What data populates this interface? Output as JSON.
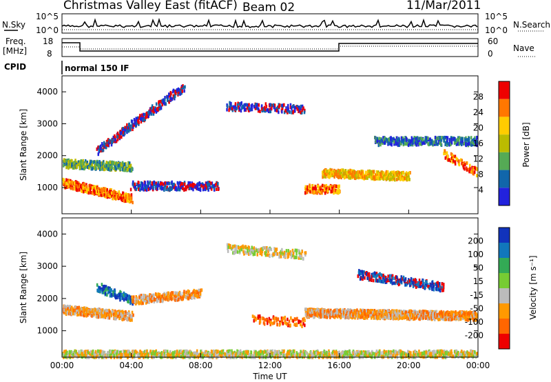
{
  "header": {
    "title": "Christmas Valley East (fitACF)",
    "beam": "Beam 02",
    "date": "11/Mar/2011"
  },
  "status_panels": {
    "nsky_label": "N.Sky",
    "nsearch_label": "N.Search",
    "nsky_ticks": [
      "10^5",
      "10^0"
    ],
    "nsearch_ticks": [
      "10^5",
      "10^0"
    ],
    "freq_label_1": "Freq.",
    "freq_label_2": "[MHz]",
    "freq_ticks": [
      "18",
      "8"
    ],
    "nave_label": "Nave",
    "nave_ticks": [
      "60",
      "0"
    ],
    "cpid_label": "CPID",
    "cpid_value": "normal 150 IF"
  },
  "chart_data": [
    {
      "type": "heatmap",
      "name": "power-panel",
      "ylabel": "Slant Range [km]",
      "xlabel": "",
      "ylim": [
        180,
        4500
      ],
      "yticks": [
        1000,
        2000,
        3000,
        4000
      ],
      "xlim": [
        0,
        24
      ],
      "colorbar": {
        "label": "Power [dB]",
        "ticks": [
          "28",
          "24",
          "20",
          "16",
          "12",
          "8",
          "4"
        ],
        "colors": [
          "#ee0000",
          "#ff7700",
          "#ffcc00",
          "#bbbb00",
          "#55aa55",
          "#1166aa",
          "#2222dd"
        ]
      }
    },
    {
      "type": "heatmap",
      "name": "velocity-panel",
      "ylabel": "Slant Range [km]",
      "xlabel": "Time UT",
      "ylim": [
        180,
        4500
      ],
      "yticks": [
        1000,
        2000,
        3000,
        4000
      ],
      "xlim": [
        0,
        24
      ],
      "xticks": [
        "00:00",
        "04:00",
        "08:00",
        "12:00",
        "16:00",
        "20:00",
        "00:00"
      ],
      "colorbar": {
        "label": "Velocity [m s⁻¹]",
        "ticks": [
          "200",
          "100",
          "50",
          "15",
          "-15",
          "-50",
          "-100",
          "-200"
        ],
        "colors": [
          "#1133bb",
          "#1177bb",
          "#33aa55",
          "#77cc33",
          "#bbbbbb",
          "#ff9900",
          "#ff6600",
          "#ee0000"
        ]
      }
    }
  ]
}
